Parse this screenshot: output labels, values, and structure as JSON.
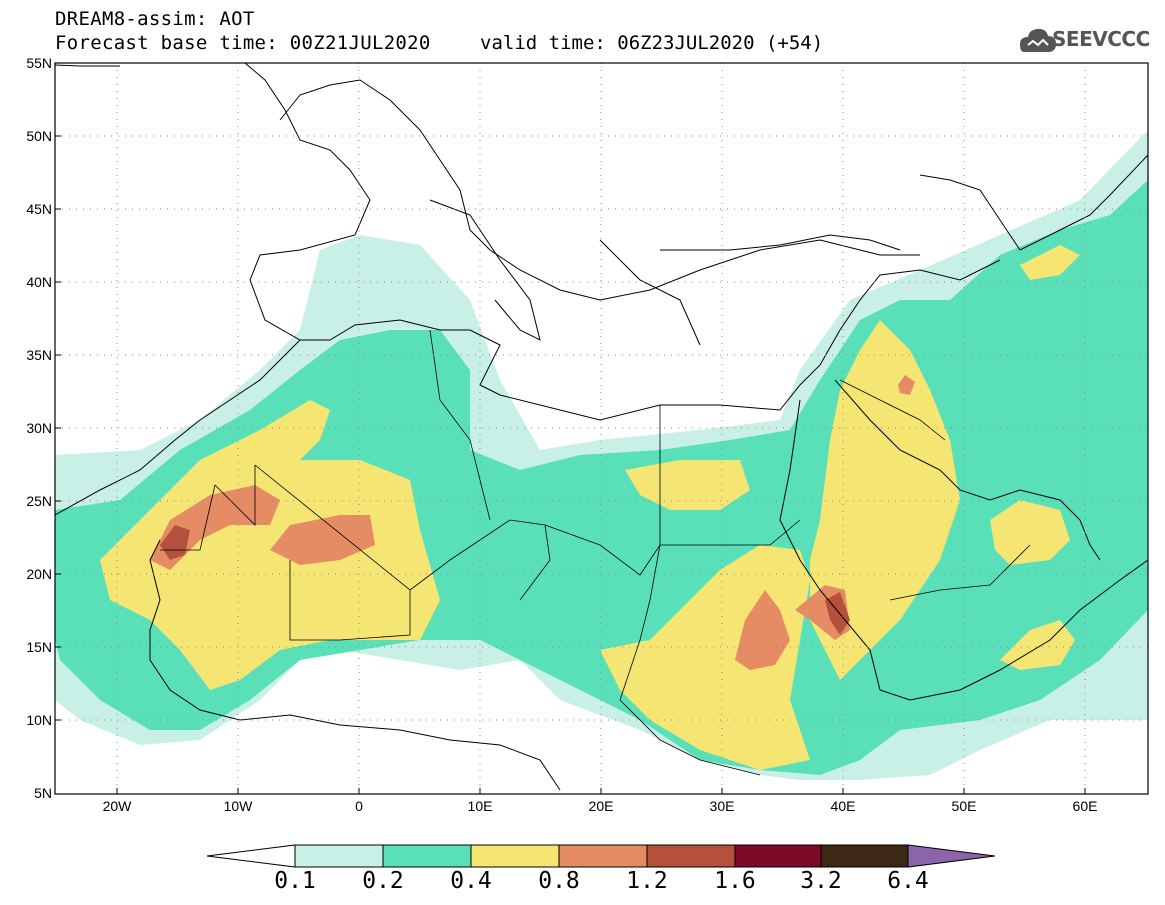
{
  "title": {
    "line1": "DREAM8-assim: AOT",
    "line2": "Forecast base time: 00Z21JUL2020",
    "valid": "valid time: 06Z23JUL2020 (+54)"
  },
  "logo": {
    "text": "SEEVCCC",
    "icon": "cloud-icon"
  },
  "axes": {
    "lat_labels": [
      "55N",
      "50N",
      "45N",
      "40N",
      "35N",
      "30N",
      "25N",
      "20N",
      "15N",
      "10N",
      "5N"
    ],
    "lon_labels": [
      "20W",
      "10W",
      "0",
      "10E",
      "20E",
      "30E",
      "40E",
      "50E",
      "60E"
    ],
    "lat_range": [
      5,
      55
    ],
    "lon_range": [
      -25,
      65
    ],
    "grid": "dotted"
  },
  "colorbar": {
    "labels": [
      "0.1",
      "0.2",
      "0.4",
      "0.8",
      "1.2",
      "1.6",
      "3.2",
      "6.4"
    ],
    "colors": [
      "#ffffff",
      "#c8f0e6",
      "#5ae0b8",
      "#f5e673",
      "#e68c64",
      "#b4503c",
      "#7d0a28",
      "#3c2814",
      "#8c64aa"
    ]
  }
}
